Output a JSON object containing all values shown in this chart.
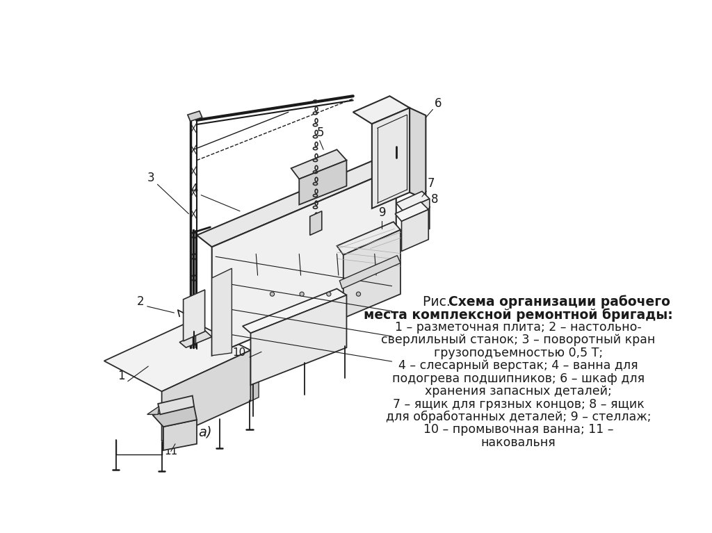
{
  "bg_color": "#ffffff",
  "text_color": "#1a1a1a",
  "fig_width": 10.24,
  "fig_height": 7.67,
  "dpi": 100,
  "label_a": "а)",
  "title_prefix": "Рис.  ",
  "title_bold_line1": "Схема организации рабочего",
  "title_bold_line2": "места комплексной ремонтной бригады:",
  "caption_lines": [
    "1 – разметочная плита; 2 – настольно-",
    "сверлильный станок; 3 – поворотный кран",
    "грузоподъемностью 0,5 Т;",
    "4 – слесарный верстак; 4 – ванна для",
    "подогрева подшипников; 6 – шкаф для",
    "хранения запасных деталей;",
    "7 – ящик для грязных концов; 8 – ящик",
    "для обработанных деталей; 9 – стеллаж;",
    "10 – промывочная ванна; 11 –",
    "наковальня"
  ]
}
